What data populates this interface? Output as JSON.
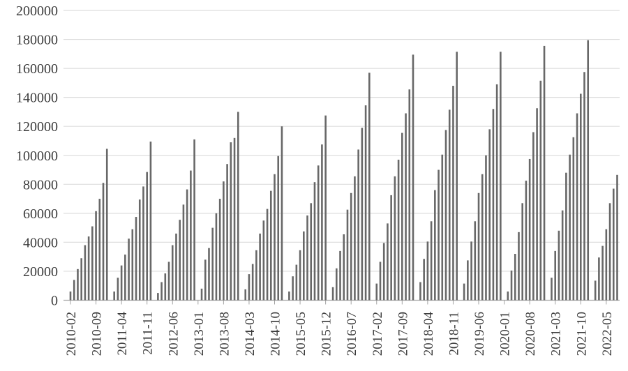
{
  "chart_data": {
    "type": "bar",
    "title": "",
    "subtitle": "",
    "xlabel": "",
    "ylabel": "",
    "legend": "none",
    "grid": "horizontal",
    "background_color": "#ffffff",
    "bar_color": "#686868",
    "gridline_color": "#dedede",
    "axis_color": "#a3a3a3",
    "text_color": "#3b3b3b",
    "ylim": [
      0,
      200000
    ],
    "y_step": 20000,
    "y_tick_labels": [
      "0",
      "20000",
      "40000",
      "60000",
      "80000",
      "100000",
      "120000",
      "140000",
      "160000",
      "180000",
      "200000"
    ],
    "x_start": "2010-02",
    "x_end": "2022-08",
    "x_tick_interval_months": 7,
    "x_tick_labels": [
      "2010-02",
      "2010-09",
      "2011-04",
      "2011-11",
      "2012-06",
      "2013-01",
      "2013-08",
      "2014-03",
      "2014-10",
      "2015-05",
      "2015-12",
      "2016-07",
      "2017-02",
      "2017-09",
      "2018-04",
      "2018-11",
      "2019-06",
      "2020-01",
      "2020-08",
      "2021-03",
      "2021-10",
      "2022-05"
    ],
    "series_note": "Year-to-date cumulative monthly totals; resets each year, no bar plotted for January",
    "values_by_year": {
      "2010": [
        null,
        6000,
        14000,
        21500,
        29000,
        38000,
        44000,
        51000,
        61500,
        70000,
        81000,
        104500
      ],
      "2011": [
        null,
        6000,
        15500,
        24000,
        31500,
        42500,
        49000,
        57500,
        69500,
        78500,
        88500,
        109500
      ],
      "2012": [
        null,
        5000,
        12500,
        18500,
        26500,
        38000,
        46000,
        55500,
        66000,
        76500,
        89500,
        111000
      ],
      "2013": [
        null,
        8000,
        28000,
        36000,
        50000,
        60000,
        70000,
        82000,
        94000,
        109000,
        112000,
        130000
      ],
      "2014": [
        null,
        7500,
        18000,
        25000,
        34500,
        46000,
        55000,
        63000,
        75500,
        87000,
        99500,
        120000
      ],
      "2015": [
        null,
        6000,
        16500,
        24500,
        34500,
        47500,
        58500,
        67000,
        81500,
        93000,
        107500,
        127500
      ],
      "2016": [
        null,
        9000,
        22000,
        34000,
        45500,
        62500,
        74000,
        85500,
        104000,
        119000,
        134500,
        157000
      ],
      "2017": [
        null,
        11500,
        26500,
        39500,
        53000,
        72500,
        85500,
        97000,
        115500,
        129000,
        145500,
        169500
      ],
      "2018": [
        null,
        12500,
        28500,
        40500,
        54500,
        76000,
        90000,
        100500,
        117500,
        131500,
        148000,
        171500
      ],
      "2019": [
        null,
        11500,
        27500,
        40500,
        54500,
        74000,
        87000,
        100000,
        118000,
        132000,
        149000,
        171500
      ],
      "2020": [
        null,
        6000,
        20500,
        32000,
        47000,
        67000,
        82500,
        97500,
        116000,
        132500,
        151500,
        175500
      ],
      "2021": [
        null,
        15500,
        34000,
        48000,
        62000,
        88000,
        100500,
        112500,
        129000,
        142500,
        157500,
        179500
      ],
      "2022": [
        null,
        13500,
        29500,
        37500,
        49000,
        67000,
        77000,
        86500
      ]
    }
  }
}
